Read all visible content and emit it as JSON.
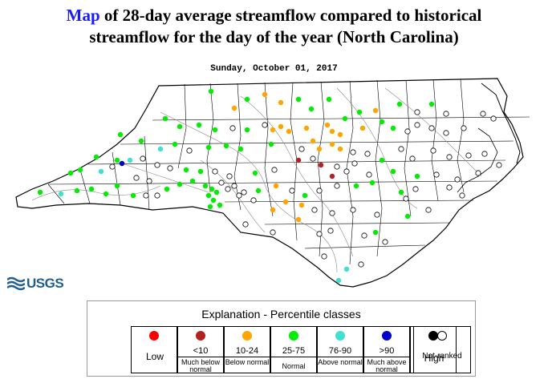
{
  "header": {
    "title_link": "Map",
    "title_rest_line1": " of 28-day average streamflow compared to historical",
    "title_line2": "streamflow for the day of the year (North Carolina)",
    "date": "Sunday, October 01, 2017"
  },
  "logo": {
    "text": "USGS",
    "icon": "usgs-wave-logo"
  },
  "legend": {
    "title": "Explanation - Percentile classes",
    "classes": [
      {
        "label": "Low",
        "range": "",
        "desc": "",
        "color": "#ff0000"
      },
      {
        "label": "",
        "range": "<10",
        "desc": "Much below normal",
        "color": "#b22222"
      },
      {
        "label": "",
        "range": "10-24",
        "desc": "Below normal",
        "color": "#ffa500"
      },
      {
        "label": "",
        "range": "25-75",
        "desc": "Normal",
        "color": "#00ee00"
      },
      {
        "label": "",
        "range": "76-90",
        "desc": "Above normal",
        "color": "#40e0d0"
      },
      {
        "label": "",
        "range": ">90",
        "desc": "Much above normal",
        "color": "#0000cd"
      },
      {
        "label": "High",
        "range": "",
        "desc": "",
        "color": "#000000"
      },
      {
        "label": "Not-ranked",
        "range": "",
        "desc": "",
        "color": "#ffffff"
      }
    ]
  },
  "colors": {
    "low": "#ff0000",
    "much_below": "#b22222",
    "below": "#ffa500",
    "normal": "#00ee00",
    "above": "#40e0d0",
    "much_above": "#0000cd",
    "high": "#000000",
    "not_ranked": "#ffffff"
  }
}
